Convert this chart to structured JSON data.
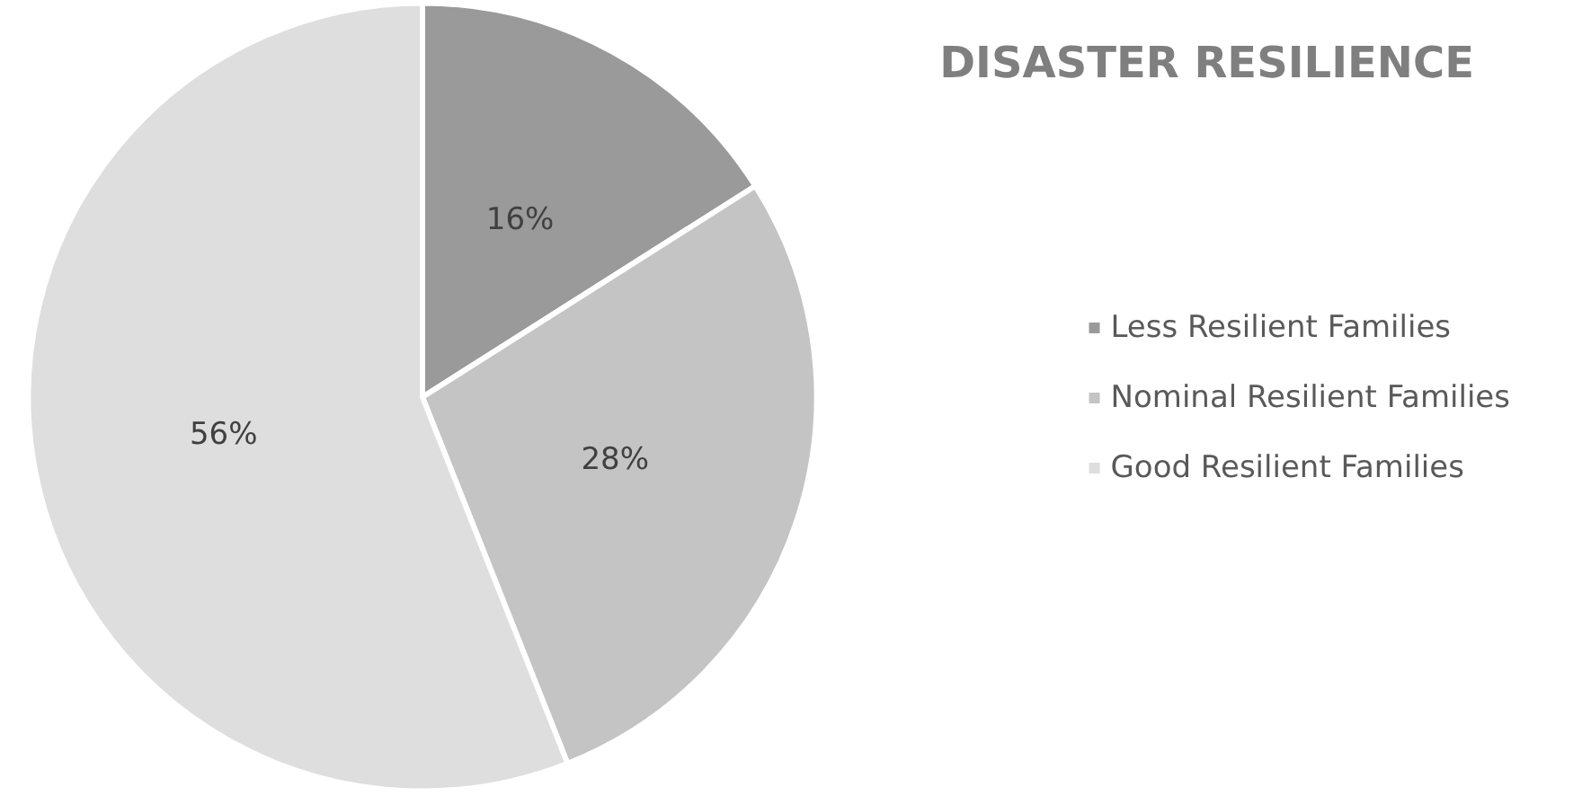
{
  "chart_data": {
    "type": "pie",
    "title": "DISASTER RESILIENCE",
    "categories": [
      "Less Resilient Families",
      "Nominal Resilient Families",
      "Good Resilient Families"
    ],
    "values": [
      16,
      28,
      56
    ],
    "colors": [
      "#9a9a9a",
      "#c4c4c4",
      "#dedede"
    ],
    "value_labels": [
      "16%",
      "28%",
      "56%"
    ],
    "legend": "right"
  }
}
